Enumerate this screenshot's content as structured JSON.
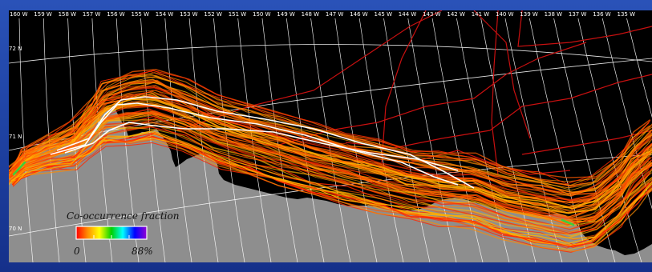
{
  "map": {
    "colors": {
      "ocean": "#000000",
      "land": "#8e8e8e",
      "slide_background": "#2347ad",
      "graticule": "#ffffff",
      "reference_tracks": "#ffffff",
      "sparse_tracks": "#c81010",
      "dense_tracks": [
        "#ff2a00",
        "#ff5a00",
        "#ff8a00",
        "#ffb000"
      ]
    },
    "longitude_labels": [
      "160 W",
      "159 W",
      "158 W",
      "157 W",
      "156 W",
      "155 W",
      "154 W",
      "153 W",
      "152 W",
      "151 W",
      "150 W",
      "149 W",
      "148 W",
      "147 W",
      "146 W",
      "145 W",
      "144 W",
      "143 W",
      "142 W",
      "141 W",
      "140 W",
      "139 W",
      "138 W",
      "137 W",
      "136 W",
      "135 W"
    ],
    "latitude_labels": [
      "72 N",
      "71 N",
      "70 N"
    ],
    "legend": {
      "title": "Co-occurrence fraction",
      "min_label": "0",
      "max_label": "88%",
      "gradient_colors": [
        "#ff0000",
        "#ff8c00",
        "#ffff00",
        "#00d000",
        "#00ffff",
        "#0000ff",
        "#9400d3"
      ]
    }
  }
}
